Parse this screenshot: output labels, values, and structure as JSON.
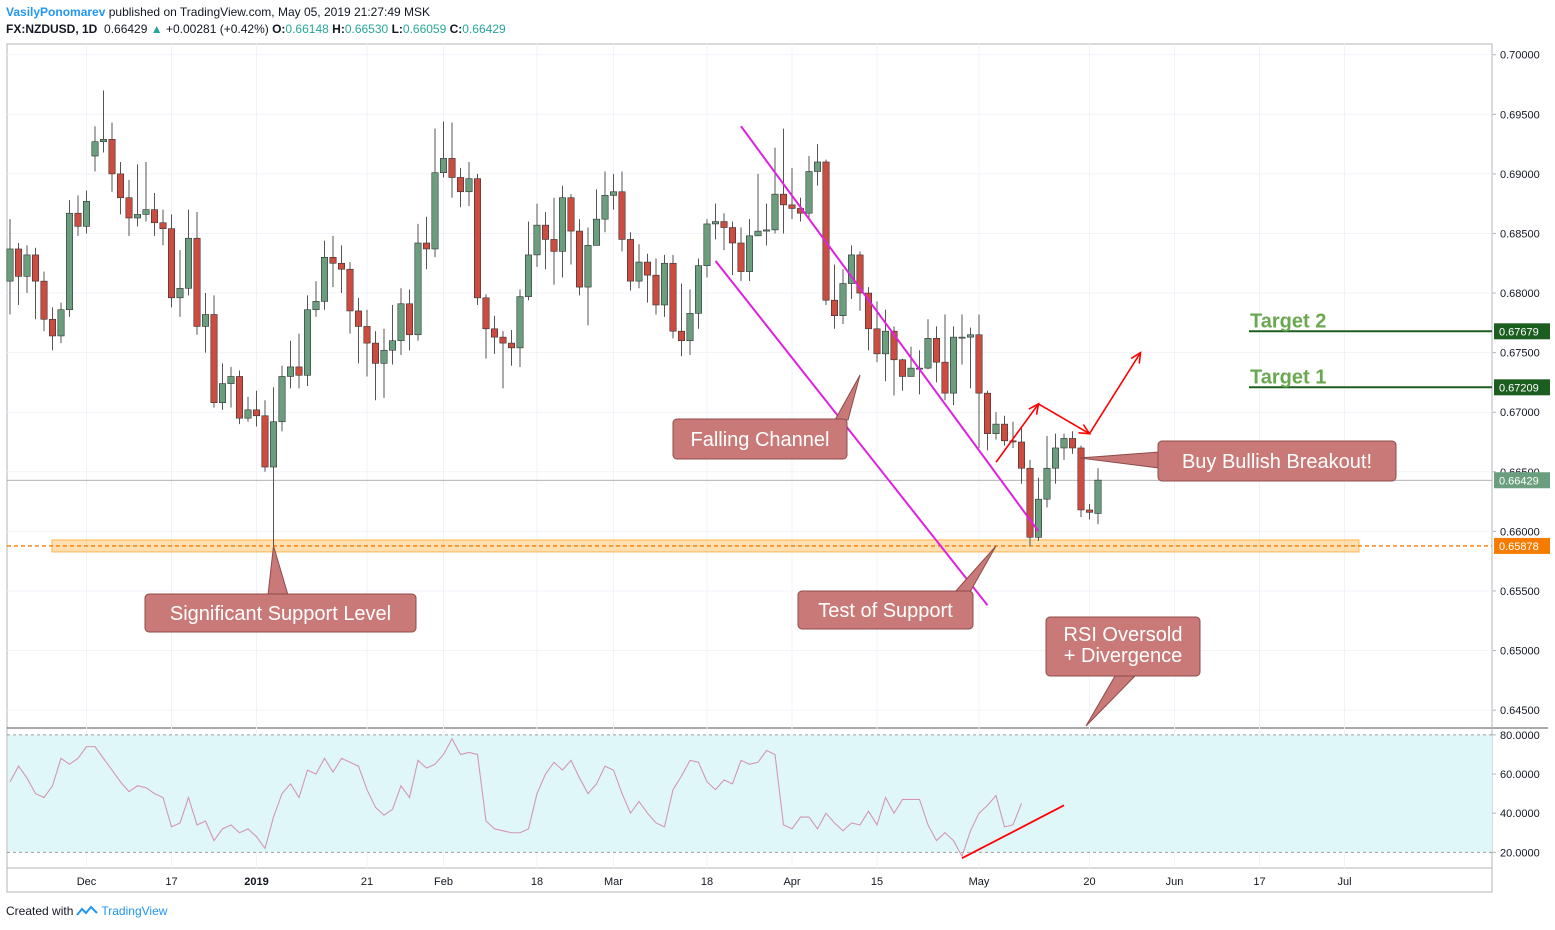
{
  "header": {
    "author": "VasilyPonomarev",
    "published": "published on TradingView.com, May 05, 2019 21:27:49 MSK",
    "symbol": "FX:NZDUSD, 1D",
    "last": "0.66429",
    "change": "+0.00281 (+0.42%)",
    "open_label": "O:",
    "open": "0.66148",
    "high_label": "H:",
    "high": "0.66530",
    "low_label": "L:",
    "low": "0.66059",
    "close_label": "C:",
    "close": "0.66429"
  },
  "footer": {
    "created_with": "Created with",
    "brand": "TradingView"
  },
  "colors": {
    "up": "#6a9e7f",
    "down": "#cd4c40",
    "channel": "#e020e0",
    "support": "#ffb74d",
    "support_line": "#f57c00",
    "callout": "#c97a78",
    "target": "#1b5e20",
    "target_text": "#6aa84f",
    "arrow": "#ff0000",
    "rsi_bg": "#e0f7fa",
    "rsi_line": "#d596b6"
  },
  "chart_data": {
    "type": "candlestick",
    "title": "FX:NZDUSD, 1D",
    "ylim": [
      0.6435,
      0.7009
    ],
    "y_ticks": [
      "0.70000",
      "0.69500",
      "0.69000",
      "0.68500",
      "0.68000",
      "0.67500",
      "0.67000",
      "0.66500",
      "0.66000",
      "0.65500",
      "0.65000",
      "0.64500"
    ],
    "x_ticks": [
      {
        "label": "Dec",
        "i": 9
      },
      {
        "label": "17",
        "i": 19
      },
      {
        "label": "2019",
        "i": 29
      },
      {
        "label": "21",
        "i": 42
      },
      {
        "label": "Feb",
        "i": 51
      },
      {
        "label": "18",
        "i": 62
      },
      {
        "label": "Mar",
        "i": 71
      },
      {
        "label": "18",
        "i": 82
      },
      {
        "label": "Apr",
        "i": 92
      },
      {
        "label": "15",
        "i": 102
      },
      {
        "label": "May",
        "i": 114
      },
      {
        "label": "20",
        "i": 127
      },
      {
        "label": "Jun",
        "i": 137
      },
      {
        "label": "17",
        "i": 147
      },
      {
        "label": "Jul",
        "i": 157
      }
    ],
    "candles": [
      [
        0.681,
        0.6837,
        0.6862,
        0.6782
      ],
      [
        0.6837,
        0.6814,
        0.6842,
        0.679
      ],
      [
        0.6814,
        0.6832,
        0.684,
        0.68
      ],
      [
        0.6832,
        0.681,
        0.6838,
        0.6778
      ],
      [
        0.681,
        0.6778,
        0.6818,
        0.6768
      ],
      [
        0.6778,
        0.6764,
        0.6788,
        0.6752
      ],
      [
        0.6764,
        0.6786,
        0.6792,
        0.6758
      ],
      [
        0.6786,
        0.6867,
        0.6878,
        0.678
      ],
      [
        0.6867,
        0.6856,
        0.6882,
        0.6848
      ],
      [
        0.6856,
        0.6877,
        0.6886,
        0.685
      ],
      [
        0.6915,
        0.6927,
        0.694,
        0.6902
      ],
      [
        0.6927,
        0.6929,
        0.697,
        0.6918
      ],
      [
        0.6929,
        0.69,
        0.6943,
        0.6885
      ],
      [
        0.69,
        0.688,
        0.691,
        0.6866
      ],
      [
        0.688,
        0.6863,
        0.6895,
        0.6848
      ],
      [
        0.6863,
        0.6866,
        0.6908,
        0.6856
      ],
      [
        0.6866,
        0.687,
        0.691,
        0.686
      ],
      [
        0.687,
        0.6859,
        0.6884,
        0.6848
      ],
      [
        0.6859,
        0.6854,
        0.687,
        0.684
      ],
      [
        0.6854,
        0.6796,
        0.6866,
        0.6788
      ],
      [
        0.6796,
        0.6804,
        0.6836,
        0.678
      ],
      [
        0.6804,
        0.6846,
        0.687,
        0.6798
      ],
      [
        0.6846,
        0.6772,
        0.6868,
        0.6765
      ],
      [
        0.6772,
        0.6782,
        0.68,
        0.675
      ],
      [
        0.6782,
        0.6708,
        0.6798,
        0.6704
      ],
      [
        0.6708,
        0.6724,
        0.6741,
        0.6702
      ],
      [
        0.6724,
        0.673,
        0.6738,
        0.6704
      ],
      [
        0.673,
        0.6695,
        0.6735,
        0.669
      ],
      [
        0.6695,
        0.6702,
        0.6713,
        0.6692
      ],
      [
        0.6702,
        0.6697,
        0.6718,
        0.6688
      ],
      [
        0.6697,
        0.6654,
        0.671,
        0.665
      ],
      [
        0.6654,
        0.6692,
        0.6721,
        0.6588
      ],
      [
        0.6692,
        0.673,
        0.6739,
        0.6684
      ],
      [
        0.673,
        0.6738,
        0.676,
        0.672
      ],
      [
        0.6738,
        0.6731,
        0.6766,
        0.672
      ],
      [
        0.6731,
        0.6786,
        0.6798,
        0.6722
      ],
      [
        0.6786,
        0.6793,
        0.681,
        0.678
      ],
      [
        0.6793,
        0.683,
        0.6844,
        0.6786
      ],
      [
        0.683,
        0.6825,
        0.6848,
        0.6805
      ],
      [
        0.6825,
        0.682,
        0.684,
        0.68
      ],
      [
        0.682,
        0.6785,
        0.6826,
        0.6766
      ],
      [
        0.6785,
        0.6772,
        0.6796,
        0.6741
      ],
      [
        0.6772,
        0.6758,
        0.6786,
        0.673
      ],
      [
        0.6758,
        0.6741,
        0.6768,
        0.671
      ],
      [
        0.6741,
        0.6752,
        0.677,
        0.6712
      ],
      [
        0.6752,
        0.676,
        0.679,
        0.674
      ],
      [
        0.676,
        0.6791,
        0.6804,
        0.6748
      ],
      [
        0.6791,
        0.6765,
        0.6803,
        0.6752
      ],
      [
        0.6765,
        0.6842,
        0.6858,
        0.676
      ],
      [
        0.6842,
        0.6837,
        0.6864,
        0.682
      ],
      [
        0.6837,
        0.6901,
        0.6938,
        0.683
      ],
      [
        0.6901,
        0.6913,
        0.6944,
        0.6897
      ],
      [
        0.6913,
        0.6897,
        0.6943,
        0.688
      ],
      [
        0.6897,
        0.6885,
        0.6905,
        0.6872
      ],
      [
        0.6885,
        0.6896,
        0.691,
        0.6873
      ],
      [
        0.6896,
        0.6796,
        0.69,
        0.679
      ],
      [
        0.6796,
        0.677,
        0.6799,
        0.6745
      ],
      [
        0.677,
        0.6763,
        0.6781,
        0.6749
      ],
      [
        0.6763,
        0.6758,
        0.6768,
        0.672
      ],
      [
        0.6758,
        0.6754,
        0.6769,
        0.6739
      ],
      [
        0.6754,
        0.6797,
        0.6803,
        0.6738
      ],
      [
        0.6797,
        0.6832,
        0.686,
        0.6794
      ],
      [
        0.6832,
        0.6857,
        0.6875,
        0.6822
      ],
      [
        0.6857,
        0.6845,
        0.6868,
        0.682
      ],
      [
        0.6845,
        0.6835,
        0.688,
        0.6807
      ],
      [
        0.6835,
        0.688,
        0.689,
        0.6813
      ],
      [
        0.688,
        0.6852,
        0.6883,
        0.6824
      ],
      [
        0.6852,
        0.6805,
        0.6862,
        0.6798
      ],
      [
        0.6805,
        0.684,
        0.6855,
        0.6773
      ],
      [
        0.684,
        0.6862,
        0.6887,
        0.6845
      ],
      [
        0.6862,
        0.6882,
        0.6902,
        0.6851
      ],
      [
        0.6882,
        0.6885,
        0.69,
        0.687
      ],
      [
        0.6885,
        0.6845,
        0.6902,
        0.6835
      ],
      [
        0.6845,
        0.681,
        0.6851,
        0.6802
      ],
      [
        0.681,
        0.6826,
        0.6841,
        0.6804
      ],
      [
        0.6826,
        0.6815,
        0.6833,
        0.6792
      ],
      [
        0.6815,
        0.679,
        0.6829,
        0.6782
      ],
      [
        0.679,
        0.6825,
        0.6832,
        0.678
      ],
      [
        0.6825,
        0.6768,
        0.6832,
        0.6762
      ],
      [
        0.6768,
        0.676,
        0.6808,
        0.6747
      ],
      [
        0.676,
        0.6783,
        0.6803,
        0.6748
      ],
      [
        0.6783,
        0.6823,
        0.6829,
        0.677
      ],
      [
        0.6823,
        0.6858,
        0.6862,
        0.6813
      ],
      [
        0.6858,
        0.686,
        0.6875,
        0.6845
      ],
      [
        0.686,
        0.6855,
        0.6867,
        0.6836
      ],
      [
        0.6855,
        0.6842,
        0.686,
        0.6815
      ],
      [
        0.6842,
        0.6818,
        0.6855,
        0.681
      ],
      [
        0.6818,
        0.6848,
        0.6862,
        0.681
      ],
      [
        0.6848,
        0.6852,
        0.69,
        0.685
      ],
      [
        0.6852,
        0.6853,
        0.6875,
        0.684
      ],
      [
        0.6853,
        0.6883,
        0.6922,
        0.685
      ],
      [
        0.6883,
        0.6874,
        0.6938,
        0.685
      ],
      [
        0.6874,
        0.6871,
        0.6905,
        0.6862
      ],
      [
        0.6871,
        0.6867,
        0.688,
        0.686
      ],
      [
        0.6867,
        0.6902,
        0.6915,
        0.6863
      ],
      [
        0.6902,
        0.691,
        0.6925,
        0.689
      ],
      [
        0.691,
        0.6794,
        0.6912,
        0.679
      ],
      [
        0.6794,
        0.6781,
        0.6824,
        0.677
      ],
      [
        0.6781,
        0.6808,
        0.682,
        0.6774
      ],
      [
        0.6808,
        0.6832,
        0.684,
        0.6795
      ],
      [
        0.6832,
        0.68,
        0.6835,
        0.6785
      ],
      [
        0.68,
        0.677,
        0.6805,
        0.6752
      ],
      [
        0.677,
        0.6749,
        0.6793,
        0.6742
      ],
      [
        0.6749,
        0.6768,
        0.6786,
        0.6726
      ],
      [
        0.6768,
        0.6744,
        0.6772,
        0.6714
      ],
      [
        0.6744,
        0.673,
        0.6745,
        0.6718
      ],
      [
        0.673,
        0.6737,
        0.6755,
        0.673
      ],
      [
        0.6737,
        0.6737,
        0.6752,
        0.6715
      ],
      [
        0.6737,
        0.6762,
        0.6778,
        0.6736
      ],
      [
        0.6762,
        0.6742,
        0.6772,
        0.6725
      ],
      [
        0.6742,
        0.6716,
        0.6782,
        0.671
      ],
      [
        0.6716,
        0.6763,
        0.6772,
        0.6706
      ],
      [
        0.6763,
        0.6763,
        0.6782,
        0.674
      ],
      [
        0.6763,
        0.6765,
        0.6771,
        0.672
      ],
      [
        0.6765,
        0.6716,
        0.6782,
        0.667
      ],
      [
        0.6716,
        0.6682,
        0.6718,
        0.6668
      ],
      [
        0.6682,
        0.669,
        0.67,
        0.6677
      ],
      [
        0.669,
        0.6676,
        0.6697,
        0.6672
      ],
      [
        0.6676,
        0.6675,
        0.6692,
        0.667
      ],
      [
        0.6675,
        0.6653,
        0.6687,
        0.664
      ],
      [
        0.6653,
        0.6595,
        0.666,
        0.6588
      ],
      [
        0.6595,
        0.6627,
        0.6645,
        0.6592
      ],
      [
        0.6627,
        0.6653,
        0.668,
        0.662
      ],
      [
        0.6653,
        0.667,
        0.6682,
        0.664
      ],
      [
        0.667,
        0.6678,
        0.6682,
        0.666
      ],
      [
        0.6678,
        0.667,
        0.6684,
        0.6665
      ],
      [
        0.667,
        0.6618,
        0.6672,
        0.6612
      ],
      [
        0.6618,
        0.6616,
        0.6623,
        0.661
      ],
      [
        0.6615,
        0.6643,
        0.6653,
        0.6606
      ]
    ],
    "support_level": {
      "value": 0.65878,
      "label": "0.65878"
    },
    "current_price": {
      "value": 0.66429,
      "label": "0.66429"
    },
    "targets": [
      {
        "name": "Target 2",
        "value": 0.67679,
        "label": "0.67679"
      },
      {
        "name": "Target 1",
        "value": 0.67209,
        "label": "0.67209"
      }
    ],
    "falling_channel": {
      "upper": [
        [
          86,
          0.694
        ],
        [
          121,
          0.66
        ]
      ],
      "lower": [
        [
          83,
          0.6827
        ],
        [
          115,
          0.6538
        ]
      ]
    },
    "projection_path": [
      [
        116,
        0.6658
      ],
      [
        121,
        0.6707
      ],
      [
        127,
        0.6682
      ],
      [
        133,
        0.675
      ]
    ],
    "annotations": [
      {
        "text": "Falling Channel"
      },
      {
        "text": "Significant Support Level"
      },
      {
        "text": "Test of Support"
      },
      {
        "text": "Buy Bullish Breakout!"
      },
      {
        "text": "RSI Oversold + Divergence",
        "lines": [
          "RSI Oversold",
          "+ Divergence"
        ]
      }
    ],
    "rsi": {
      "ylim": [
        12,
        83
      ],
      "y_ticks": [
        "80.0000",
        "60.0000",
        "40.0000",
        "20.0000"
      ],
      "overbought": 80,
      "oversold": 20,
      "values": [
        56,
        64,
        58,
        50,
        48,
        54,
        68,
        65,
        68,
        74,
        74,
        68,
        62,
        56,
        51,
        54,
        53,
        50,
        48,
        33,
        35,
        48,
        34,
        36,
        26,
        32,
        34,
        30,
        32,
        28,
        22,
        38,
        50,
        55,
        48,
        62,
        60,
        68,
        61,
        68,
        66,
        64,
        52,
        43,
        39,
        42,
        54,
        48,
        67,
        63,
        65,
        70,
        78,
        70,
        71,
        70,
        36,
        32,
        31,
        30,
        30,
        32,
        50,
        60,
        66,
        62,
        67,
        58,
        50,
        55,
        64,
        62,
        50,
        40,
        46,
        40,
        35,
        33,
        52,
        59,
        67,
        66,
        56,
        52,
        57,
        55,
        67,
        65,
        66,
        72,
        70,
        34,
        32,
        38,
        38,
        32,
        40,
        35,
        31,
        35,
        34,
        41,
        34,
        48,
        40,
        47,
        47,
        47,
        34,
        26,
        30,
        26,
        18,
        31,
        40,
        44,
        49,
        33,
        34,
        45
      ],
      "divergence_line": [
        [
          112,
          17
        ],
        [
          124,
          44
        ]
      ]
    }
  }
}
